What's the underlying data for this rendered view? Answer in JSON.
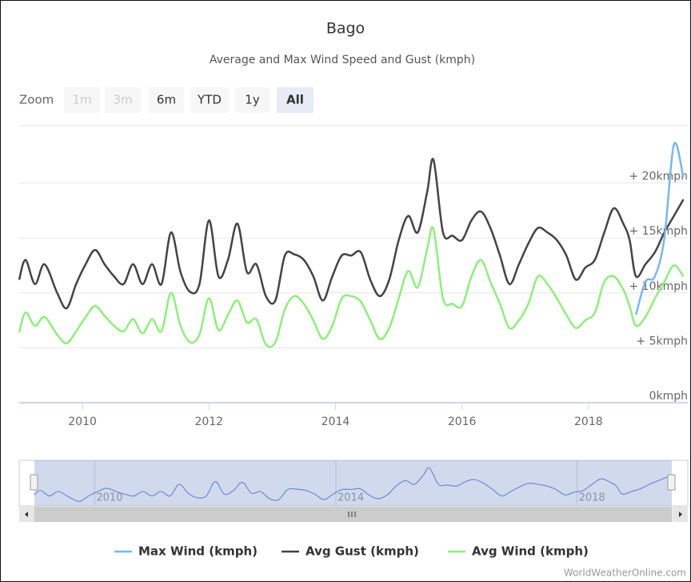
{
  "chart_data": {
    "type": "line",
    "title": "Bago",
    "subtitle": "Average and Max Wind Speed and Gust (kmph)",
    "zoom_label": "Zoom",
    "zoom_buttons": [
      "1m",
      "3m",
      "6m",
      "YTD",
      "1y",
      "All"
    ],
    "credit": "WorldWeatherOnline.com",
    "x": [
      2009.0,
      2009.1,
      2009.25,
      2009.4,
      2009.6,
      2009.75,
      2009.9,
      2010.05,
      2010.2,
      2010.35,
      2010.5,
      2010.65,
      2010.8,
      2010.95,
      2011.1,
      2011.25,
      2011.4,
      2011.55,
      2011.7,
      2011.85,
      2012.0,
      2012.15,
      2012.3,
      2012.45,
      2012.6,
      2012.75,
      2012.9,
      2013.05,
      2013.2,
      2013.35,
      2013.5,
      2013.65,
      2013.8,
      2013.95,
      2014.1,
      2014.25,
      2014.4,
      2014.55,
      2014.7,
      2014.85,
      2015.0,
      2015.15,
      2015.3,
      2015.45,
      2015.55,
      2015.7,
      2015.85,
      2016.0,
      2016.15,
      2016.3,
      2016.45,
      2016.6,
      2016.75,
      2016.9,
      2017.05,
      2017.2,
      2017.35,
      2017.5,
      2017.65,
      2017.8,
      2017.95,
      2018.1,
      2018.25,
      2018.4,
      2018.55,
      2018.65,
      2018.75,
      2018.9,
      2019.05,
      2019.2,
      2019.35,
      2019.5
    ],
    "series": [
      {
        "name": "Max Wind (kmph)",
        "color": "#7cb5ec",
        "values": [
          null,
          null,
          null,
          null,
          null,
          null,
          null,
          null,
          null,
          null,
          null,
          null,
          null,
          null,
          null,
          null,
          null,
          null,
          null,
          null,
          null,
          null,
          null,
          null,
          null,
          null,
          null,
          null,
          null,
          null,
          null,
          null,
          null,
          null,
          null,
          null,
          null,
          null,
          null,
          null,
          null,
          null,
          null,
          null,
          null,
          null,
          null,
          null,
          null,
          null,
          null,
          null,
          null,
          null,
          null,
          null,
          null,
          null,
          null,
          null,
          null,
          null,
          null,
          null,
          null,
          null,
          8,
          11,
          11.5,
          15,
          23.5,
          20.5
        ]
      },
      {
        "name": "Avg Gust (kmph)",
        "color": "#434348",
        "values": [
          11.2,
          13,
          10.8,
          12.6,
          10,
          8.6,
          10.8,
          12.6,
          13.9,
          12.6,
          11.5,
          10.8,
          12.6,
          10.8,
          12.6,
          10.8,
          15.5,
          11.9,
          10.1,
          10.8,
          16.6,
          11.5,
          13,
          16.3,
          11.9,
          12.6,
          9.7,
          9.3,
          13.4,
          13.5,
          13,
          11.5,
          9.3,
          11.5,
          13.4,
          13.4,
          13.7,
          11.2,
          9.7,
          11.2,
          14.8,
          17,
          15.5,
          19.2,
          22.1,
          15.5,
          15.2,
          14.8,
          16.6,
          17.4,
          15.9,
          13.4,
          10.8,
          12.6,
          14.5,
          15.9,
          15.5,
          14.8,
          13.4,
          11.2,
          12.3,
          13,
          15.5,
          17.7,
          16.3,
          14.8,
          11.5,
          12.6,
          13.7,
          15.5,
          17,
          18.5
        ]
      },
      {
        "name": "Avg Wind (kmph)",
        "color": "#90ed7d",
        "values": [
          6.4,
          8.2,
          7,
          7.8,
          6.2,
          5.4,
          6.5,
          7.8,
          8.8,
          7.9,
          7,
          6.5,
          7.6,
          6.3,
          7.6,
          6.5,
          10,
          7,
          5.5,
          6.2,
          9.5,
          6.6,
          8,
          9.3,
          7.3,
          7.6,
          5.3,
          5.5,
          8.5,
          9.7,
          9,
          7.5,
          5.8,
          7,
          9.5,
          9.7,
          9.2,
          7.5,
          5.8,
          6.8,
          9.5,
          12,
          10.5,
          14,
          15.8,
          9.5,
          9,
          8.8,
          11.5,
          13,
          11,
          9,
          6.8,
          7.5,
          9,
          11.5,
          10.8,
          9.5,
          8,
          6.8,
          7.5,
          8.2,
          11,
          11.5,
          10.3,
          8.8,
          7,
          7.8,
          9.5,
          11,
          12.5,
          11.5
        ]
      }
    ],
    "xlim": [
      2009,
      2019.57
    ],
    "xticks": [
      2010,
      2012,
      2014,
      2016,
      2018
    ],
    "ylim": [
      0,
      25
    ],
    "yticks": [
      {
        "value": 0,
        "label": "0kmph"
      },
      {
        "value": 5,
        "label": "+ 5kmph"
      },
      {
        "value": 10,
        "label": "+ 10kmph"
      },
      {
        "value": 15,
        "label": "+ 15kmph"
      },
      {
        "value": 20,
        "label": "+ 20kmph"
      }
    ],
    "grid": true,
    "legend": "bottom",
    "navigator": {
      "xticks": [
        2010,
        2014,
        2018
      ],
      "color": "#6a8fd8"
    }
  }
}
